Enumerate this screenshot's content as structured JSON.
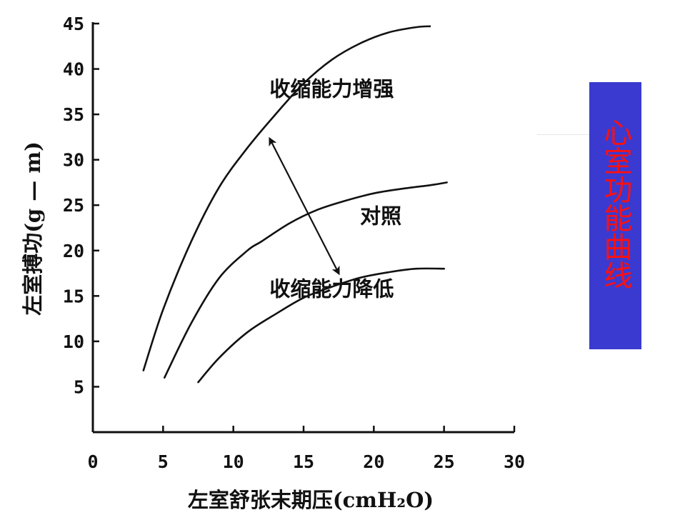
{
  "side_title": "心室功能曲线",
  "colors": {
    "panel_bg": "#3a3ad0",
    "panel_text": "#ff1010",
    "ink": "#111111"
  },
  "chart_data": {
    "type": "line",
    "xlabel": "左室舒张末期压(cmH₂O)",
    "ylabel": "左室搏功(g — m)",
    "xlim": [
      0,
      30
    ],
    "ylim": [
      0,
      45
    ],
    "x_ticks": [
      0,
      5,
      10,
      15,
      20,
      25,
      30
    ],
    "y_ticks": [
      5,
      10,
      15,
      20,
      25,
      30,
      35,
      40,
      45
    ],
    "x_tick_labels": [
      "0",
      "5",
      "10",
      "15",
      "20",
      "25",
      "30"
    ],
    "y_tick_labels": [
      "5",
      "10",
      "15",
      "20",
      "25",
      "30",
      "35",
      "40",
      "45"
    ],
    "grid": false,
    "series": [
      {
        "name": "收缩能力增强",
        "points": [
          [
            3.6,
            6.8
          ],
          [
            5,
            13.5
          ],
          [
            7,
            21
          ],
          [
            9,
            27
          ],
          [
            11,
            31.3
          ],
          [
            13,
            35
          ],
          [
            15,
            38.4
          ],
          [
            17,
            41
          ],
          [
            19,
            42.8
          ],
          [
            21,
            44
          ],
          [
            23,
            44.6
          ],
          [
            24,
            44.7
          ]
        ]
      },
      {
        "name": "对照",
        "points": [
          [
            5.1,
            6
          ],
          [
            7,
            12
          ],
          [
            9,
            17
          ],
          [
            11,
            20
          ],
          [
            12,
            21
          ],
          [
            14,
            23
          ],
          [
            16,
            24.5
          ],
          [
            18,
            25.5
          ],
          [
            20,
            26.3
          ],
          [
            22,
            26.8
          ],
          [
            24,
            27.2
          ],
          [
            25.2,
            27.5
          ]
        ]
      },
      {
        "name": "收缩能力降低",
        "points": [
          [
            7.5,
            5.5
          ],
          [
            9,
            8.2
          ],
          [
            11,
            11
          ],
          [
            13,
            13
          ],
          [
            15,
            14.8
          ],
          [
            17,
            16
          ],
          [
            19,
            17
          ],
          [
            21,
            17.6
          ],
          [
            23,
            18
          ],
          [
            25,
            18
          ]
        ]
      }
    ],
    "annotations": [
      {
        "text": "收缩能力增强",
        "x": 17,
        "y": 37
      },
      {
        "text": "对照",
        "x": 20.5,
        "y": 23
      },
      {
        "text": "收缩能力降低",
        "x": 17,
        "y": 15
      }
    ],
    "arrow": {
      "from": [
        12.6,
        32.3
      ],
      "to": [
        17.5,
        17.5
      ],
      "double_headed": true
    }
  }
}
